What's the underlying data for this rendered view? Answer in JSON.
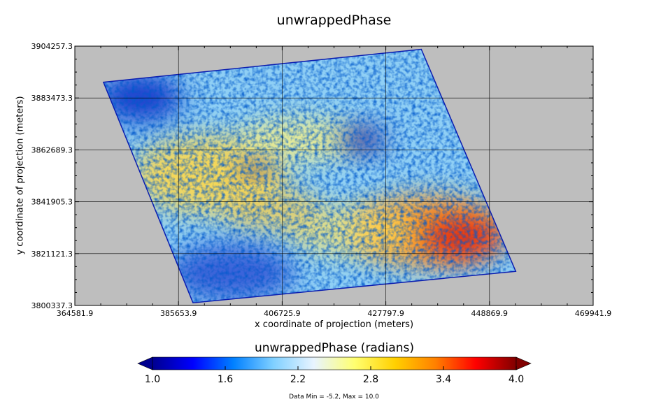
{
  "chart_data": {
    "type": "heatmap",
    "title": "unwrappedPhase",
    "xlabel": "x coordinate of projection (meters)",
    "ylabel": "y coordinate of projection (meters)",
    "x_ticks": [
      "364581.9",
      "385653.9",
      "406725.9",
      "427797.9",
      "448869.9",
      "469941.9"
    ],
    "y_ticks": [
      "3904257.3",
      "3883473.3",
      "3862689.3",
      "3841905.3",
      "3821121.3",
      "3800337.3"
    ],
    "xlim": [
      364581.9,
      469941.9
    ],
    "ylim": [
      3800337.3,
      3904257.3
    ],
    "grid": true,
    "background_color": "#bebebe",
    "footprint_corners": [
      {
        "x": 370400,
        "y": 3889800
      },
      {
        "x": 435000,
        "y": 3903000
      },
      {
        "x": 454200,
        "y": 3814000
      },
      {
        "x": 388600,
        "y": 3801400
      }
    ],
    "colorbar": {
      "title": "unwrappedPhase (radians)",
      "min": 1.0,
      "max": 4.0,
      "ticks": [
        "1.0",
        "1.6",
        "2.2",
        "2.8",
        "3.4",
        "4.0"
      ],
      "colormap": [
        "#00008f",
        "#0000ff",
        "#0080ff",
        "#80d0ff",
        "#e8f4ff",
        "#ffff70",
        "#ffd000",
        "#ff8000",
        "#ff0000",
        "#800000"
      ],
      "extend": "both"
    },
    "data_min": -5.2,
    "data_max": 10.0,
    "footer": "Data Min = -5.2, Max = 10.0"
  }
}
